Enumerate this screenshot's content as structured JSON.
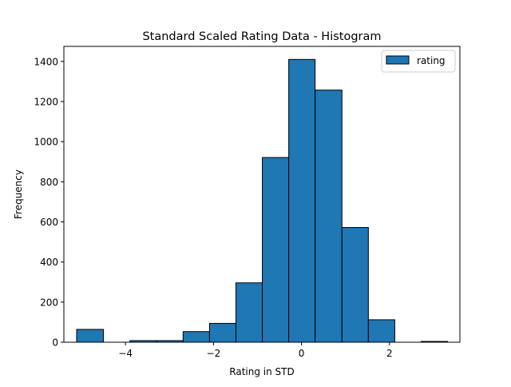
{
  "chart_data": {
    "type": "histogram",
    "title": "Standard Scaled Rating Data - Histogram",
    "xlabel": "Rating in STD",
    "ylabel": "Frequency",
    "xlim": [
      -5.4,
      3.6
    ],
    "ylim": [
      0,
      1475
    ],
    "xticks": [
      -4,
      -2,
      0,
      2
    ],
    "xtick_labels": [
      "−4",
      "−2",
      "0",
      "2"
    ],
    "yticks": [
      0,
      200,
      400,
      600,
      800,
      1000,
      1200,
      1400
    ],
    "ytick_labels": [
      "0",
      "200",
      "400",
      "600",
      "800",
      "1000",
      "1200",
      "1400"
    ],
    "bin_edges": [
      -5.11,
      -4.5,
      -3.9,
      -3.29,
      -2.69,
      -2.09,
      -1.49,
      -0.89,
      -0.29,
      0.31,
      0.92,
      1.52,
      2.12,
      2.72,
      3.32
    ],
    "series": [
      {
        "name": "rating",
        "values": [
          64,
          0,
          8,
          8,
          53,
          94,
          296,
          921,
          1410,
          1257,
          572,
          112,
          0,
          4
        ]
      }
    ],
    "colors": {
      "bar_fill": "#1f77b4",
      "bar_edge": "#000000"
    },
    "grid": false,
    "legend_position": "top-right"
  }
}
